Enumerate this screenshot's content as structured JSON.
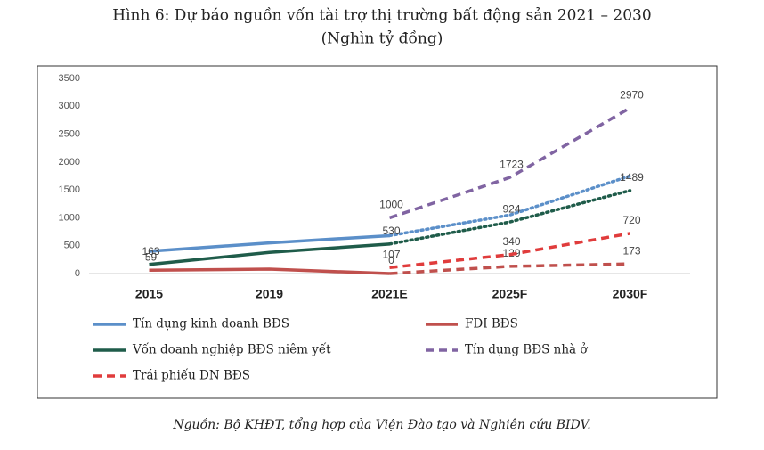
{
  "chart_data": {
    "type": "line",
    "title": "Hình 6: Dự báo nguồn vốn tài trợ thị trường bất động sản 2021 – 2030",
    "subtitle": "(Nghìn tỷ đồng)",
    "source": "Nguồn: Bộ KHĐT, tổng hợp của Viện Đào tạo và Nghiên cứu BIDV.",
    "categories": [
      "2015",
      "2019",
      "2021E",
      "2025F",
      "2030F"
    ],
    "forecast_start": 2,
    "ylim": [
      0,
      3500
    ],
    "yticks": [
      0,
      500,
      1000,
      1500,
      2000,
      2500,
      3000,
      3500
    ],
    "series": [
      {
        "name": "Tín dụng kinh doanh BĐS",
        "color": "#5b8fc9",
        "dash": "solid",
        "forecast_dash": "dotted",
        "values": [
          400,
          550,
          680,
          1050,
          1750
        ],
        "value_labels": [
          null,
          null,
          null,
          null,
          null
        ]
      },
      {
        "name": "FDI BĐS",
        "color": "#c0504d",
        "dash": "solid",
        "forecast_dash": "dashed",
        "values": [
          59,
          80,
          0,
          129,
          173
        ],
        "value_labels": [
          "59",
          null,
          "0",
          "129",
          "173"
        ]
      },
      {
        "name": "Vốn doanh nghiệp BĐS niêm yết",
        "color": "#1f5c4a",
        "dash": "solid",
        "forecast_dash": "dotted",
        "values": [
          163,
          380,
          530,
          924,
          1489
        ],
        "value_labels": [
          "163",
          null,
          "530",
          "924",
          "1489"
        ]
      },
      {
        "name": "Tín dụng BĐS nhà ở",
        "color": "#8064a2",
        "dash": "dashed",
        "forecast_dash": "dashed",
        "values": [
          null,
          null,
          1000,
          1723,
          2970
        ],
        "value_labels": [
          null,
          null,
          "1000",
          "1723",
          "2970"
        ]
      },
      {
        "name": "Trái phiếu DN BĐS",
        "color": "#e03c3c",
        "dash": "dashed",
        "forecast_dash": "dashed",
        "values": [
          null,
          null,
          107,
          340,
          720
        ],
        "value_labels": [
          null,
          null,
          "107",
          "340",
          "720"
        ]
      }
    ]
  }
}
